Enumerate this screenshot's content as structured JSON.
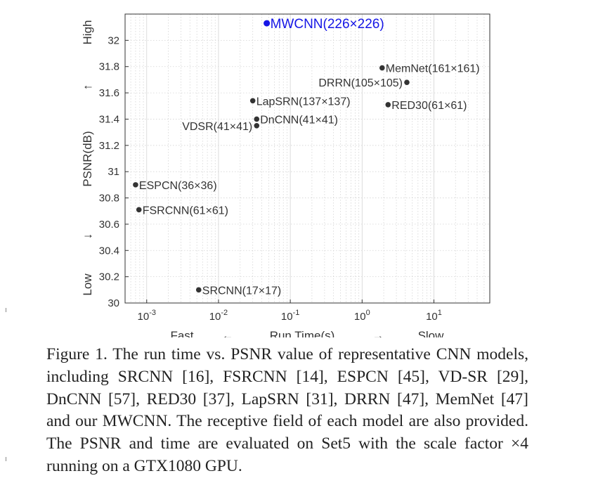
{
  "chart_data": {
    "type": "scatter",
    "x_scale": "log",
    "xlim": [
      0.0005,
      60
    ],
    "ylim": [
      30,
      32.2
    ],
    "grid": true,
    "x_ticks": [
      {
        "value": 0.001,
        "base": "10",
        "exp": "-3"
      },
      {
        "value": 0.01,
        "base": "10",
        "exp": "-2"
      },
      {
        "value": 0.1,
        "base": "10",
        "exp": "-1"
      },
      {
        "value": 1,
        "base": "10",
        "exp": "0"
      },
      {
        "value": 10,
        "base": "10",
        "exp": "1"
      }
    ],
    "y_ticks": [
      {
        "value": 30,
        "label": "30"
      },
      {
        "value": 30.2,
        "label": "30.2"
      },
      {
        "value": 30.4,
        "label": "30.4"
      },
      {
        "value": 30.6,
        "label": "30.6"
      },
      {
        "value": 30.8,
        "label": "30.8"
      },
      {
        "value": 31,
        "label": "31"
      },
      {
        "value": 31.2,
        "label": "31.2"
      },
      {
        "value": 31.4,
        "label": "31.4"
      },
      {
        "value": 31.6,
        "label": "31.6"
      },
      {
        "value": 31.8,
        "label": "31.8"
      },
      {
        "value": 32,
        "label": "32"
      }
    ],
    "points": [
      {
        "name": "MWCNN(226×226)",
        "x": 0.047,
        "y": 32.13,
        "color": "#1515e6",
        "label_side": "right",
        "highlight": true
      },
      {
        "name": "MemNet(161×161)",
        "x": 1.9,
        "y": 31.79,
        "color": "#333333",
        "label_side": "right"
      },
      {
        "name": "DRRN(105×105)",
        "x": 4.2,
        "y": 31.68,
        "color": "#333333",
        "label_side": "left"
      },
      {
        "name": "LapSRN(137×137)",
        "x": 0.03,
        "y": 31.54,
        "color": "#333333",
        "label_side": "right"
      },
      {
        "name": "RED30(61×61)",
        "x": 2.3,
        "y": 31.51,
        "color": "#333333",
        "label_side": "right"
      },
      {
        "name": "DnCNN(41×41)",
        "x": 0.034,
        "y": 31.4,
        "color": "#333333",
        "label_side": "right"
      },
      {
        "name": "VDSR(41×41)",
        "x": 0.034,
        "y": 31.35,
        "color": "#333333",
        "label_side": "left"
      },
      {
        "name": "ESPCN(36×36)",
        "x": 0.0007,
        "y": 30.9,
        "color": "#333333",
        "label_side": "right"
      },
      {
        "name": "FSRCNN(61×61)",
        "x": 0.00078,
        "y": 30.71,
        "color": "#333333",
        "label_side": "right"
      },
      {
        "name": "SRCNN(17×17)",
        "x": 0.0053,
        "y": 30.1,
        "color": "#333333",
        "label_side": "right"
      }
    ],
    "x_annotations": {
      "left": "Fast",
      "left_arrow": "←",
      "center": "Run Time(s)",
      "right_arrow": "→",
      "right": "Slow"
    },
    "y_annotations": {
      "top": "High",
      "top_arrow": "↑",
      "center": "PSNR(dB)",
      "bottom_arrow": "↓",
      "bottom": "Low"
    }
  },
  "caption": "Figure 1. The run time vs.  PSNR value of representative CNN models, including SRCNN [16], FSRCNN [14], ESPCN [45], VD-SR [29], DnCNN [57], RED30 [37], LapSRN [31], DRRN [47], MemNet [47] and our MWCNN. The receptive field of each model are also provided. The PSNR and time are evaluated on Set5 with the scale factor ×4 running on a GTX1080 GPU.",
  "colors": {
    "highlight": "#1515e6",
    "marker": "#333333",
    "grid": "#d4d4d4"
  }
}
